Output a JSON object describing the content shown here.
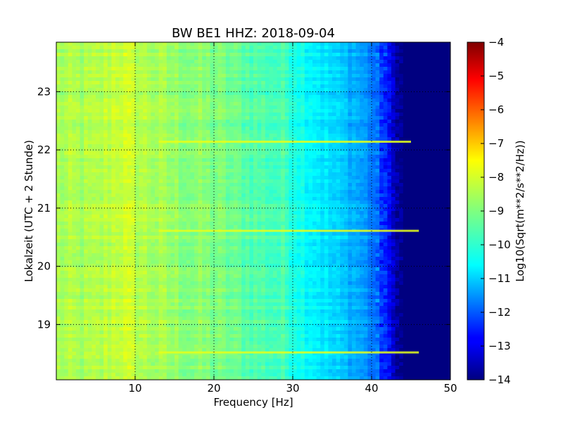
{
  "chart_data": {
    "type": "heatmap",
    "title": "BW BE1 HHZ: 2018-09-04",
    "xlabel": "Frequency [Hz]",
    "ylabel": "Lokalzeit (UTC + 2 Stunde)",
    "xlim": [
      0,
      50
    ],
    "ylim": [
      23.85,
      18.05
    ],
    "x_ticks": [
      10,
      20,
      30,
      40,
      50
    ],
    "x_tick_labels": [
      "10",
      "20",
      "30",
      "40",
      "50"
    ],
    "y_ticks": [
      19,
      20,
      21,
      22,
      23
    ],
    "y_tick_labels": [
      "19",
      "20",
      "21",
      "22",
      "23"
    ],
    "grid": true,
    "colormap": "jet",
    "colorbar": {
      "label": "Log10(Sqrt(m**2/s**2/Hz))",
      "min": -14,
      "max": -4,
      "ticks": [
        -4,
        -5,
        -6,
        -7,
        -8,
        -9,
        -10,
        -11,
        -12,
        -13,
        -14
      ],
      "tick_labels": [
        "−4",
        "−5",
        "−6",
        "−7",
        "−8",
        "−9",
        "−10",
        "−11",
        "−12",
        "−13",
        "−14"
      ]
    },
    "spectrum_profile": {
      "frequency_hz": [
        0,
        5,
        8,
        10,
        15,
        20,
        25,
        29,
        31,
        33,
        34,
        36,
        38,
        40,
        42,
        43,
        44,
        50
      ],
      "log10_amplitude": [
        -8.6,
        -8.6,
        -8.2,
        -8.4,
        -8.8,
        -9.0,
        -9.4,
        -9.6,
        -10.0,
        -10.3,
        -10.5,
        -10.8,
        -11.0,
        -11.5,
        -12.5,
        -13.5,
        -14.0,
        -14.0
      ]
    },
    "lines": [
      {
        "time_h": 18.52,
        "level": -8.0,
        "to_hz": 46
      },
      {
        "time_h": 20.61,
        "level": -8.0,
        "to_hz": 46
      },
      {
        "time_h": 22.14,
        "level": -8.0,
        "to_hz": 45
      }
    ]
  }
}
